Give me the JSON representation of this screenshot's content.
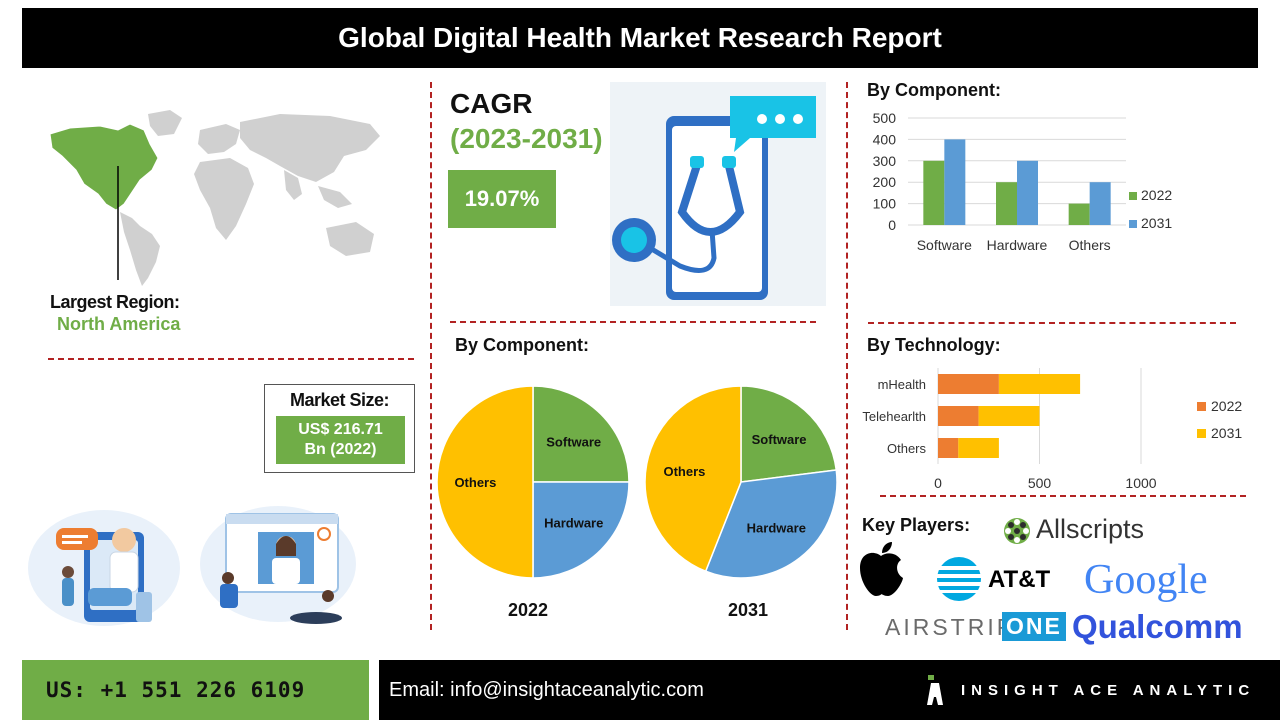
{
  "header": {
    "title": "Global Digital Health Market Research Report"
  },
  "region": {
    "label": "Largest Region:",
    "value": "North America"
  },
  "market_size": {
    "label": "Market Size:",
    "line1": "US$ 216.71",
    "line2": "Bn (2022)"
  },
  "cagr": {
    "title": "CAGR",
    "years": "(2023-2031)",
    "value": "19.07%"
  },
  "sections": {
    "component_bar_title": "By Component:",
    "component_pie_title": "By Component:",
    "technology_title": "By Technology:",
    "key_players_title": "Key Players:"
  },
  "key_players": [
    "Allscripts",
    "AT&T",
    "Google",
    "AIRSTRIP",
    "ONE",
    "Qualcomm"
  ],
  "colors": {
    "green": "#70ad47",
    "blue": "#5b9bd5",
    "orange": "#ed7d31",
    "yellow": "#ffc000",
    "dash": "#b22222"
  },
  "chart_data": [
    {
      "type": "bar",
      "title": "By Component:",
      "categories": [
        "Software",
        "Hardware",
        "Others"
      ],
      "series": [
        {
          "name": "2022",
          "values": [
            300,
            200,
            100
          ]
        },
        {
          "name": "2031",
          "values": [
            400,
            300,
            200
          ]
        }
      ],
      "ylim": [
        0,
        500
      ],
      "yticks": [
        "0",
        "100",
        "200",
        "300",
        "400",
        "500"
      ],
      "grid": true,
      "legend": "right"
    },
    {
      "type": "pie",
      "title": "By Component:",
      "year_label": "2022",
      "labels": [
        "Software",
        "Hardware",
        "Others"
      ],
      "values": [
        25,
        25,
        50
      ],
      "colors": [
        "#70ad47",
        "#5b9bd5",
        "#ffc000"
      ]
    },
    {
      "type": "pie",
      "year_label": "2031",
      "labels": [
        "Software",
        "Hardware",
        "Others"
      ],
      "values": [
        23,
        33,
        44
      ],
      "colors": [
        "#70ad47",
        "#5b9bd5",
        "#ffc000"
      ]
    },
    {
      "type": "bar",
      "orientation": "horizontal",
      "stacked": true,
      "title": "By Technology:",
      "categories": [
        "mHealth",
        "Telehearlth",
        "Others"
      ],
      "series": [
        {
          "name": "2022",
          "values": [
            300,
            200,
            100
          ]
        },
        {
          "name": "2031",
          "values": [
            400,
            300,
            200
          ]
        }
      ],
      "xlim": [
        0,
        1000
      ],
      "xticks": [
        "0",
        "500",
        "1000"
      ],
      "grid": true,
      "legend": "right"
    }
  ],
  "footer": {
    "phone": "US: +1 551 226 6109",
    "email": "Email: info@insightaceanalytic.com",
    "brand": "INSIGHT ACE ANALYTIC"
  }
}
